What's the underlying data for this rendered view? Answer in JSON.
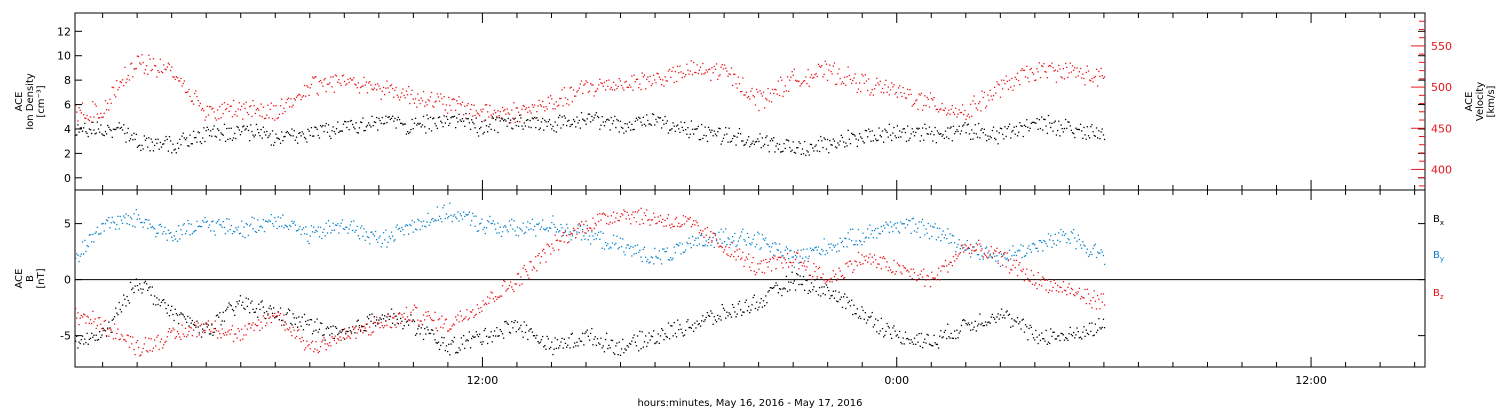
{
  "chart_data": {
    "type": "scatter",
    "xlabel": "hours:minutes, May 16, 2016 - May 17, 2016",
    "x_tick_labels": [
      "12:00",
      "0:00",
      "12:00"
    ],
    "x_tick_hours": [
      12,
      24,
      36
    ],
    "x_range_hours": [
      0.2,
      39.3
    ],
    "data_end_hour": 30.0,
    "colors": {
      "black": "#000000",
      "blue": "#0a82c8",
      "red": "#e8141a"
    },
    "panels": [
      {
        "id": "ion",
        "ylabel_lines": [
          "ACE",
          "Ion Density",
          "[cm⁻³]"
        ],
        "ylabel_right_lines": [
          "ACE",
          "Velocity",
          "[km/s]"
        ],
        "y_range": [
          -1,
          13.5
        ],
        "y_ticks": [
          0,
          2,
          4,
          6,
          8,
          10,
          12
        ],
        "y2_range": [
          375,
          590
        ],
        "y2_ticks": [
          400,
          450,
          500,
          550
        ],
        "series": [
          {
            "color": "black",
            "axis": "left",
            "knots": [
              [
                0.2,
                4
              ],
              [
                1.5,
                4
              ],
              [
                2,
                3
              ],
              [
                3,
                2.7
              ],
              [
                4,
                3.5
              ],
              [
                5,
                4
              ],
              [
                6,
                3.3
              ],
              [
                7,
                3.8
              ],
              [
                8,
                4.2
              ],
              [
                9,
                4.7
              ],
              [
                10,
                4.4
              ],
              [
                11,
                4.8
              ],
              [
                12,
                4.2
              ],
              [
                13,
                4.8
              ],
              [
                14,
                4.5
              ],
              [
                15,
                5
              ],
              [
                16,
                4.3
              ],
              [
                17,
                4.8
              ],
              [
                18,
                4
              ],
              [
                19,
                3.5
              ],
              [
                20,
                3
              ],
              [
                21,
                2.5
              ],
              [
                22,
                2.8
              ],
              [
                23,
                3.5
              ],
              [
                24,
                3.8
              ],
              [
                25,
                3.6
              ],
              [
                26,
                4
              ],
              [
                27,
                3.5
              ],
              [
                28,
                4.5
              ],
              [
                29,
                4.2
              ],
              [
                30,
                3.5
              ]
            ]
          },
          {
            "color": "red",
            "axis": "right",
            "knots": [
              [
                0.2,
                470
              ],
              [
                1,
                470
              ],
              [
                1.5,
                510
              ],
              [
                2,
                530
              ],
              [
                3,
                520
              ],
              [
                4,
                470
              ],
              [
                5,
                475
              ],
              [
                6,
                470
              ],
              [
                7,
                500
              ],
              [
                8,
                510
              ],
              [
                9,
                500
              ],
              [
                10,
                490
              ],
              [
                11,
                480
              ],
              [
                12,
                470
              ],
              [
                13,
                470
              ],
              [
                14,
                480
              ],
              [
                15,
                500
              ],
              [
                16,
                505
              ],
              [
                17,
                510
              ],
              [
                18,
                520
              ],
              [
                19,
                520
              ],
              [
                20,
                485
              ],
              [
                21,
                510
              ],
              [
                22,
                520
              ],
              [
                23,
                505
              ],
              [
                24,
                495
              ],
              [
                25,
                480
              ],
              [
                26,
                470
              ],
              [
                27,
                500
              ],
              [
                28,
                520
              ],
              [
                29,
                520
              ],
              [
                30,
                510
              ]
            ]
          }
        ]
      },
      {
        "id": "mag",
        "ylabel_lines": [
          "ACE",
          "B",
          "[nT]"
        ],
        "y_range": [
          -7.8,
          8
        ],
        "y_ticks": [
          -5,
          0,
          5
        ],
        "zero_line": true,
        "legend": [
          {
            "label": "Bx",
            "color": "black"
          },
          {
            "label": "By",
            "color": "blue"
          },
          {
            "label": "Bz",
            "color": "red"
          }
        ],
        "series": [
          {
            "name": "Bx",
            "color": "black",
            "knots": [
              [
                0.2,
                -5.5
              ],
              [
                1,
                -5
              ],
              [
                2,
                0
              ],
              [
                3,
                -3
              ],
              [
                4,
                -4.5
              ],
              [
                5,
                -2
              ],
              [
                6,
                -3
              ],
              [
                7,
                -4
              ],
              [
                8,
                -5
              ],
              [
                9,
                -3
              ],
              [
                10,
                -4
              ],
              [
                11,
                -6
              ],
              [
                12,
                -5
              ],
              [
                13,
                -4
              ],
              [
                14,
                -6
              ],
              [
                15,
                -5
              ],
              [
                16,
                -6
              ],
              [
                17,
                -5
              ],
              [
                18,
                -4
              ],
              [
                19,
                -3
              ],
              [
                20,
                -2
              ],
              [
                21,
                0
              ],
              [
                22,
                -1
              ],
              [
                23,
                -3
              ],
              [
                24,
                -5
              ],
              [
                25,
                -5.5
              ],
              [
                26,
                -4
              ],
              [
                27,
                -3
              ],
              [
                28,
                -5
              ],
              [
                29,
                -5
              ],
              [
                30,
                -4
              ]
            ]
          },
          {
            "name": "By",
            "color": "blue",
            "knots": [
              [
                0.2,
                2
              ],
              [
                1,
                5
              ],
              [
                2,
                5.5
              ],
              [
                3,
                4
              ],
              [
                4,
                5
              ],
              [
                5,
                4.5
              ],
              [
                6,
                5.5
              ],
              [
                7,
                4
              ],
              [
                8,
                5
              ],
              [
                9,
                3.5
              ],
              [
                10,
                5
              ],
              [
                11,
                6
              ],
              [
                12,
                5
              ],
              [
                13,
                4.5
              ],
              [
                14,
                5
              ],
              [
                15,
                4
              ],
              [
                16,
                3
              ],
              [
                17,
                2
              ],
              [
                18,
                3
              ],
              [
                19,
                4
              ],
              [
                20,
                3.5
              ],
              [
                21,
                2
              ],
              [
                22,
                3
              ],
              [
                23,
                4
              ],
              [
                24,
                5
              ],
              [
                25,
                4.5
              ],
              [
                26,
                3
              ],
              [
                27,
                2
              ],
              [
                28,
                3
              ],
              [
                29,
                4
              ],
              [
                30,
                2
              ]
            ]
          },
          {
            "name": "Bz",
            "color": "red",
            "knots": [
              [
                0.2,
                -3
              ],
              [
                1,
                -4
              ],
              [
                2,
                -6
              ],
              [
                3,
                -5
              ],
              [
                4,
                -4
              ],
              [
                5,
                -5
              ],
              [
                6,
                -3
              ],
              [
                7,
                -6
              ],
              [
                8,
                -5
              ],
              [
                9,
                -4
              ],
              [
                10,
                -3
              ],
              [
                11,
                -4
              ],
              [
                12,
                -2
              ],
              [
                13,
                0
              ],
              [
                14,
                3
              ],
              [
                15,
                5
              ],
              [
                16,
                6
              ],
              [
                17,
                5.5
              ],
              [
                18,
                5
              ],
              [
                19,
                3
              ],
              [
                20,
                1
              ],
              [
                21,
                2
              ],
              [
                22,
                0
              ],
              [
                23,
                2
              ],
              [
                24,
                1
              ],
              [
                25,
                0
              ],
              [
                26,
                3
              ],
              [
                27,
                2
              ],
              [
                28,
                0
              ],
              [
                29,
                -1
              ],
              [
                30,
                -2
              ]
            ]
          }
        ]
      }
    ]
  }
}
